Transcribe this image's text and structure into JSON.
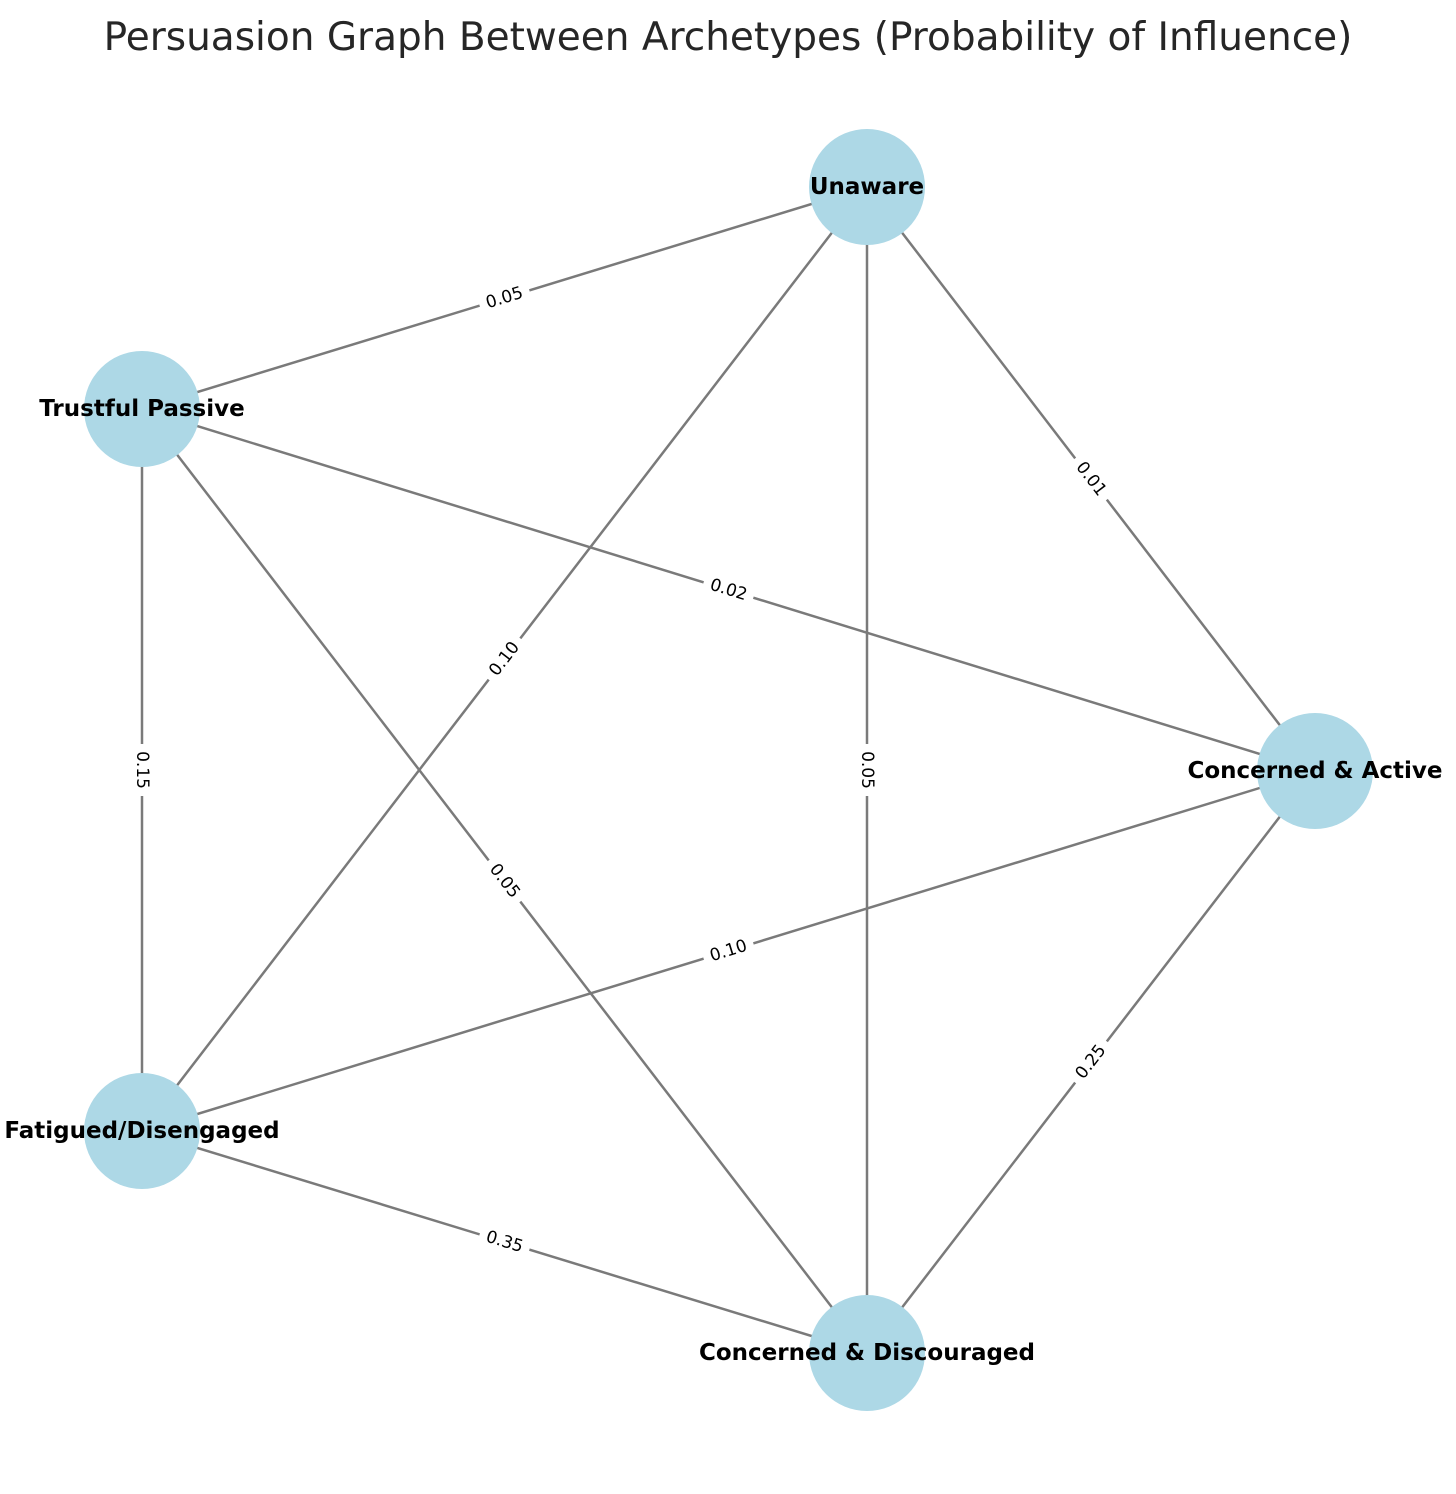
{
  "title": "Persuasion Graph Between Archetypes (Probability of Influence)",
  "node_color": "#add8e6",
  "edge_color": "#7a7a7a",
  "nodes": [
    {
      "id": "unaware",
      "label": "Unaware"
    },
    {
      "id": "trustful",
      "label": "Trustful Passive"
    },
    {
      "id": "active",
      "label": "Concerned & Active"
    },
    {
      "id": "fatigued",
      "label": "Fatigued/Disengaged"
    },
    {
      "id": "discouraged",
      "label": "Concerned & Discouraged"
    }
  ],
  "edges": [
    {
      "from": "unaware",
      "to": "trustful",
      "weight": "0.05"
    },
    {
      "from": "unaware",
      "to": "active",
      "weight": "0.01"
    },
    {
      "from": "unaware",
      "to": "fatigued",
      "weight": "0.10"
    },
    {
      "from": "unaware",
      "to": "discouraged",
      "weight": "0.05"
    },
    {
      "from": "trustful",
      "to": "active",
      "weight": "0.02"
    },
    {
      "from": "trustful",
      "to": "fatigued",
      "weight": "0.15"
    },
    {
      "from": "trustful",
      "to": "discouraged",
      "weight": "0.05"
    },
    {
      "from": "active",
      "to": "fatigued",
      "weight": "0.10"
    },
    {
      "from": "active",
      "to": "discouraged",
      "weight": "0.25"
    },
    {
      "from": "fatigued",
      "to": "discouraged",
      "weight": "0.35"
    }
  ]
}
